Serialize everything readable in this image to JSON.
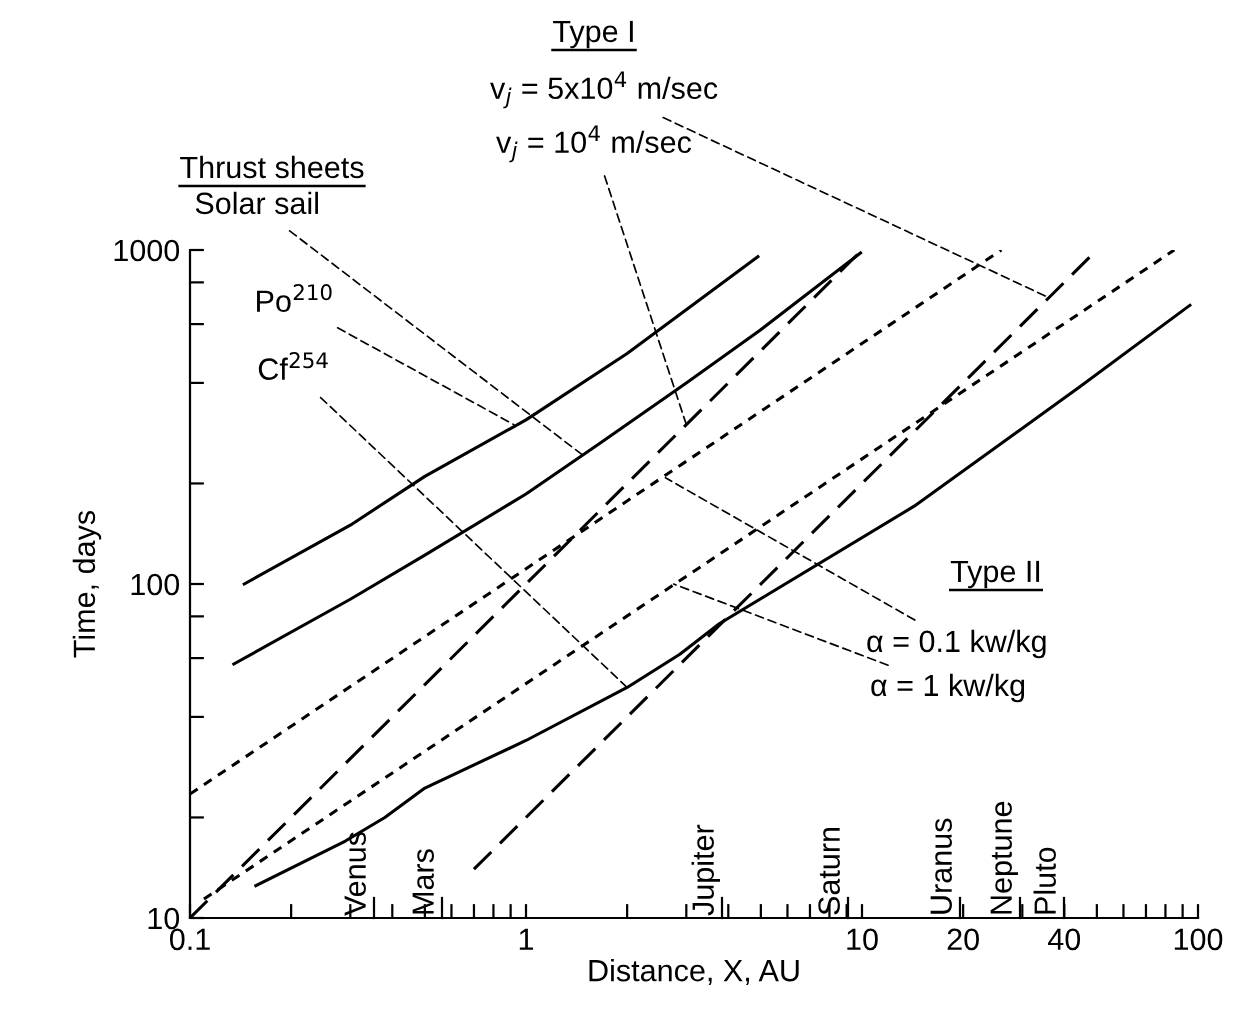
{
  "chart_data": {
    "type": "line",
    "xlabel": "Distance, X, AU",
    "ylabel": "Time, days",
    "log": "xy",
    "grid": false,
    "legend": false,
    "marker": "none",
    "xlim": [
      0.1,
      100
    ],
    "ylim": [
      10,
      1000
    ],
    "xticks": [
      {
        "value": 0.1,
        "label": "0.1"
      },
      {
        "value": 0.2,
        "label": null
      },
      {
        "value": 0.3,
        "label": null
      },
      {
        "value": 0.4,
        "label": null
      },
      {
        "value": 0.5,
        "label": null
      },
      {
        "value": 0.6,
        "label": null
      },
      {
        "value": 0.7,
        "label": null
      },
      {
        "value": 0.8,
        "label": null
      },
      {
        "value": 0.9,
        "label": null
      },
      1,
      {
        "value": 2,
        "label": null
      },
      {
        "value": 3,
        "label": null
      },
      {
        "value": 4,
        "label": null
      },
      {
        "value": 5,
        "label": null
      },
      {
        "value": 6,
        "label": null
      },
      {
        "value": 7,
        "label": null
      },
      {
        "value": 8,
        "label": null
      },
      {
        "value": 9,
        "label": null
      },
      10,
      20,
      {
        "value": 30,
        "label": null
      },
      40,
      {
        "value": 50,
        "label": null
      },
      {
        "value": 60,
        "label": null
      },
      {
        "value": 70,
        "label": null
      },
      {
        "value": 80,
        "label": null
      },
      {
        "value": 90,
        "label": null
      },
      100
    ],
    "yticks": [
      10,
      {
        "value": 20,
        "label": null
      },
      {
        "value": 40,
        "label": null
      },
      {
        "value": 60,
        "label": null
      },
      {
        "value": 80,
        "label": null
      },
      100,
      {
        "value": 200,
        "label": null
      },
      {
        "value": 400,
        "label": null
      },
      {
        "value": 600,
        "label": null
      },
      {
        "value": 800,
        "label": null
      },
      1000
    ],
    "series": [
      {
        "color": "#000000",
        "line_style": "solid",
        "x": [
          0.145,
          0.3,
          0.5,
          1,
          2,
          4.9
        ],
        "values": [
          100,
          150,
          210,
          310,
          490,
          955
        ]
      },
      {
        "color": "#000000",
        "line_style": "solid",
        "x": [
          0.135,
          0.3,
          0.5,
          1,
          1.66,
          3,
          4.96,
          9.9
        ],
        "values": [
          57.6,
          90,
          122,
          186,
          264,
          400,
          574,
          980
        ]
      },
      {
        "color": "#000000",
        "line_style": "solid",
        "x": [
          0.157,
          0.29,
          0.38,
          0.5,
          1,
          2,
          2.87,
          3.76,
          14.3,
          44.6,
          94.6
        ],
        "values": [
          12.5,
          17,
          20,
          24.5,
          34,
          49,
          61.6,
          76,
          171,
          390,
          683
        ]
      },
      {
        "color": "#000000",
        "line_style": "longdash",
        "x": [
          0.1,
          10
        ],
        "values": [
          10,
          1000
        ]
      },
      {
        "color": "#000000",
        "line_style": "longdash",
        "x": [
          0.7,
          50
        ],
        "values": [
          14,
          1000
        ]
      },
      {
        "color": "#000000",
        "line_style": "dashed",
        "x": [
          0.1,
          26
        ],
        "values": [
          23.5,
          1000
        ]
      },
      {
        "color": "#000000",
        "line_style": "dashed",
        "x": [
          0.11,
          85
        ],
        "values": [
          11.4,
          1000
        ]
      }
    ],
    "annotations": [
      "Thrust sheets",
      "Type I",
      "Type II",
      {
        "text": "Solar sail",
        "x": 1.5,
        "y": 240
      },
      {
        "text": "Po$^{210}$",
        "x": 0.92,
        "y": 300
      },
      {
        "text": "Cf$^{254}$",
        "x": 2,
        "y": 49
      },
      {
        "text": "v$_{j}$ = 5x10$^{4}$ m/sec",
        "x": 36,
        "y": 720
      },
      {
        "text": "v$_{j}$ = 10$^{4}$ m/sec",
        "x": 3,
        "y": 300
      },
      {
        "text": "α = 0.1 kw/kg",
        "x": 2.6,
        "y": 208
      },
      {
        "text": "α = 1 kw/kg",
        "x": 2.75,
        "y": 100
      },
      "Venus",
      "Mars",
      "Jupiter",
      "Saturn",
      "Uranus",
      "Neptune",
      "Pluto"
    ]
  }
}
